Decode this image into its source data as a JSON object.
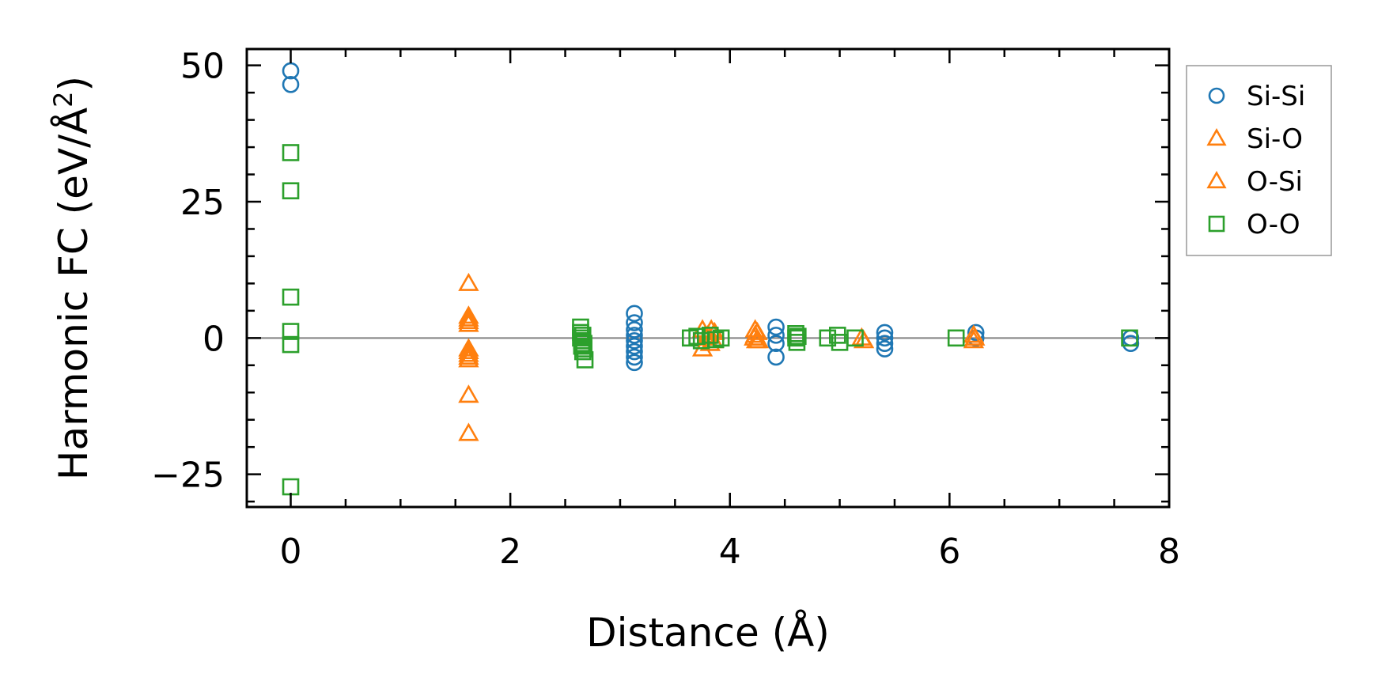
{
  "chart_data": {
    "type": "scatter",
    "xlabel": "Distance (Å)",
    "ylabel_main": "Harmonic FC (eV/Å",
    "ylabel_sup": "2",
    "ylabel_end": ")",
    "xlim": [
      -0.4,
      8.0
    ],
    "ylim": [
      -31,
      53
    ],
    "xticks": [
      0,
      2,
      4,
      6,
      8
    ],
    "xtick_labels": [
      "0",
      "2",
      "4",
      "6",
      "8"
    ],
    "yticks": [
      -25,
      0,
      25,
      50
    ],
    "ytick_labels": [
      "−25",
      "0",
      "25",
      "50"
    ],
    "grid": false,
    "zero_line": true,
    "legend_position": "outside-right-top",
    "series": [
      {
        "name": "Si-Si",
        "marker": "circle",
        "color": "#1f77b4",
        "x": [
          0,
          0,
          3.13,
          3.13,
          3.13,
          3.13,
          3.13,
          3.13,
          3.13,
          3.13,
          3.13,
          4.42,
          4.42,
          4.42,
          4.42,
          5.41,
          5.41,
          5.41,
          5.41,
          6.24,
          6.24,
          7.65,
          7.65
        ],
        "y": [
          49,
          46.5,
          4.5,
          2.8,
          0.5,
          -0.5,
          -2.5,
          -3.5,
          -4.5,
          1.5,
          -1.5,
          2,
          0.5,
          -1,
          -3.5,
          1,
          0,
          -1,
          -2,
          1,
          0,
          0,
          -1
        ]
      },
      {
        "name": "Si-O",
        "marker": "triangle",
        "color": "#ff7f0e",
        "x": [
          1.62,
          1.62,
          1.62,
          1.62,
          1.62,
          1.62,
          1.62,
          3.75,
          3.75,
          3.78,
          3.83,
          3.85,
          4.23,
          4.23,
          4.24,
          4.25,
          5.2,
          6.22,
          6.22
        ],
        "y": [
          10,
          4,
          2.5,
          -2.5,
          -4,
          -10.5,
          -17.5,
          1.5,
          -2,
          0,
          1.5,
          -0.5,
          1.5,
          0.5,
          -0.5,
          1,
          0,
          0.5,
          -0.5
        ]
      },
      {
        "name": "O-Si",
        "marker": "triangle",
        "color": "#ff7f0e",
        "x": [
          1.62,
          1.62,
          1.62,
          1.62,
          1.62,
          3.8,
          3.82,
          3.86,
          4.22,
          4.26,
          5.22,
          6.23
        ],
        "y": [
          3.5,
          3,
          -2,
          -3,
          -3.5,
          0.5,
          -1,
          1,
          0,
          -0.5,
          -0.5,
          0
        ]
      },
      {
        "name": "O-O",
        "marker": "square",
        "color": "#2ca02c",
        "x": [
          0,
          0,
          0,
          0,
          0,
          0,
          2.64,
          2.64,
          2.64,
          2.65,
          2.65,
          2.66,
          2.66,
          2.67,
          2.67,
          2.68,
          3.64,
          3.7,
          3.74,
          3.82,
          3.87,
          3.92,
          4.6,
          4.6,
          4.61,
          4.62,
          4.89,
          4.98,
          5.0,
          5.14,
          6.06,
          7.64
        ],
        "y": [
          34,
          27,
          7.5,
          1.2,
          -1.2,
          -27.3,
          2,
          1,
          0,
          -0.5,
          -1.5,
          -2.5,
          0.5,
          -1,
          -2,
          -4,
          0,
          0.3,
          -0.5,
          0.5,
          -0.3,
          0,
          0.8,
          0,
          -0.8,
          0.3,
          0,
          0.5,
          -0.8,
          0,
          0,
          0
        ]
      }
    ]
  }
}
